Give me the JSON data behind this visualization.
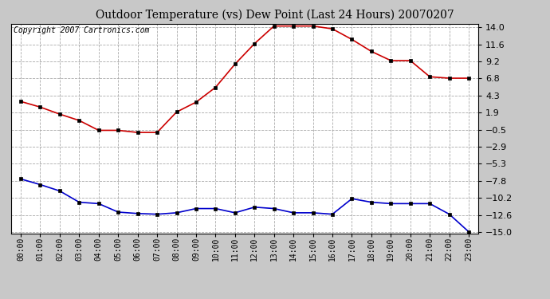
{
  "title": "Outdoor Temperature (vs) Dew Point (Last 24 Hours) 20070207",
  "copyright_text": "Copyright 2007 Cartronics.com",
  "hours": [
    "00:00",
    "01:00",
    "02:00",
    "03:00",
    "04:00",
    "05:00",
    "06:00",
    "07:00",
    "08:00",
    "09:00",
    "10:00",
    "11:00",
    "12:00",
    "13:00",
    "14:00",
    "15:00",
    "16:00",
    "17:00",
    "18:00",
    "19:00",
    "20:00",
    "21:00",
    "22:00",
    "23:00"
  ],
  "temp": [
    3.5,
    2.7,
    1.7,
    0.8,
    -0.6,
    -0.6,
    -0.9,
    -0.9,
    2.0,
    3.4,
    5.5,
    8.8,
    11.7,
    14.2,
    14.2,
    14.2,
    13.8,
    12.3,
    10.6,
    9.3,
    9.3,
    7.0,
    6.8,
    6.8
  ],
  "dewpoint": [
    -7.5,
    -8.3,
    -9.2,
    -10.8,
    -11.0,
    -12.2,
    -12.4,
    -12.5,
    -12.3,
    -11.7,
    -11.7,
    -12.3,
    -11.5,
    -11.7,
    -12.3,
    -12.3,
    -12.5,
    -10.3,
    -10.8,
    -11.0,
    -11.0,
    -11.0,
    -12.5,
    -15.0
  ],
  "temp_color": "#cc0000",
  "dew_color": "#0000cc",
  "bg_color": "#c8c8c8",
  "plot_bg_color": "#ffffff",
  "grid_color": "#aaaaaa",
  "yticks": [
    14.0,
    11.6,
    9.2,
    6.8,
    4.3,
    1.9,
    -0.5,
    -2.9,
    -5.3,
    -7.8,
    -10.2,
    -12.6,
    -15.0
  ],
  "ymin": -15.0,
  "ymax": 14.0,
  "title_fontsize": 10,
  "copyright_fontsize": 7,
  "marker_size": 3,
  "line_width": 1.2
}
